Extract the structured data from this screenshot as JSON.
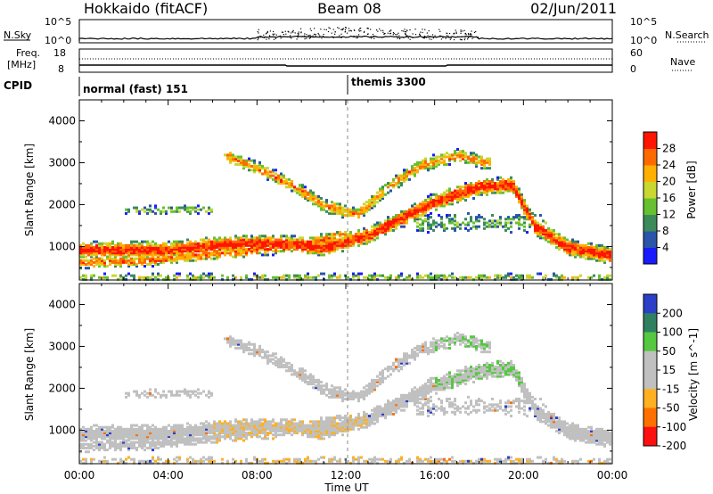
{
  "header": {
    "station": "Hokkaido (fitACF)",
    "beam": "Beam 08",
    "date": "02/Jun/2011"
  },
  "top_panels": {
    "nsky_label": "N.Sky",
    "nsky_ticks": [
      "10^5",
      "10^0"
    ],
    "nsearch_ticks": [
      "10^5",
      "10^0"
    ],
    "nsearch_label": "N.Search",
    "freq_label_line1": "Freq.",
    "freq_label_line2": "[MHz]",
    "freq_ticks": [
      "18",
      "8"
    ],
    "nave_ticks": [
      "60",
      "0"
    ],
    "nave_label": "Nave",
    "cpid_label": "CPID",
    "cpid_segments": [
      "normal (fast) 151",
      "themis 3300"
    ]
  },
  "chart_data": [
    {
      "type": "heatmap",
      "title": "",
      "ylabel": "Slant Range [km]",
      "xlabel": "",
      "ylim": [
        200,
        4500
      ],
      "y_ticks": [
        "1000",
        "2000",
        "3000",
        "4000"
      ],
      "colorbar": {
        "label": "Power [dB]",
        "ticks": [
          "4",
          "8",
          "12",
          "16",
          "20",
          "24",
          "28"
        ],
        "range": [
          0,
          32
        ],
        "colors": [
          "#1a1aff",
          "#2a55a8",
          "#3c8a5a",
          "#66c030",
          "#c8d830",
          "#ffb000",
          "#ff6a00",
          "#ff1500"
        ]
      }
    },
    {
      "type": "heatmap",
      "title": "",
      "ylabel": "Slant Range [km]",
      "xlabel": "Time UT",
      "ylim": [
        200,
        4500
      ],
      "y_ticks": [
        "1000",
        "2000",
        "3000",
        "4000"
      ],
      "x_ticks": [
        "00:00",
        "04:00",
        "08:00",
        "12:00",
        "16:00",
        "20:00",
        "00:00"
      ],
      "colorbar": {
        "label": "Velocity [m s^-1]",
        "ticks": [
          "200",
          "100",
          "50",
          "15",
          "-15",
          "-50",
          "-100",
          "-200"
        ],
        "colors": [
          "#2b3fc8",
          "#2f8060",
          "#55c840",
          "#c0c0c0",
          "#c0c0c0",
          "#ffb020",
          "#ff7000",
          "#ff1010"
        ]
      }
    }
  ]
}
